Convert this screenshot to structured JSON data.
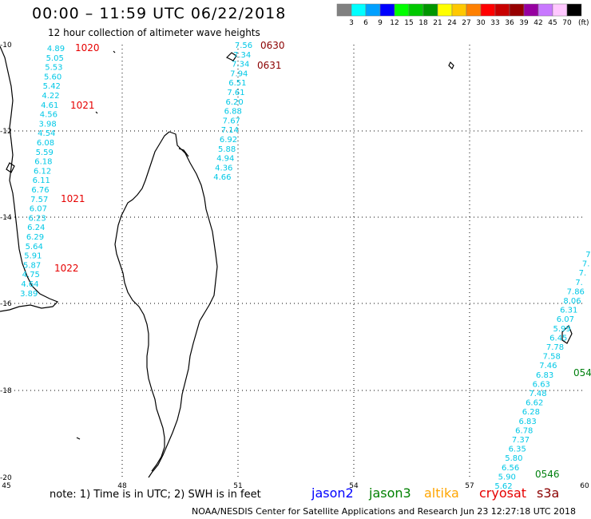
{
  "header": {
    "title": "00:00 – 11:59 UTC 06/22/2018",
    "subtitle": "12 hour collection of altimeter wave heights"
  },
  "colorbar": {
    "colors": [
      "#808080",
      "#00ffff",
      "#00a0ff",
      "#0000ff",
      "#00ff00",
      "#00c800",
      "#009600",
      "#ffff00",
      "#ffc800",
      "#ff8000",
      "#ff0000",
      "#c80000",
      "#960000",
      "#9600a0",
      "#c878ff",
      "#ffc8ff",
      "#000000"
    ],
    "labels": [
      "3",
      "6",
      "9",
      "12",
      "15",
      "18",
      "21",
      "24",
      "27",
      "30",
      "33",
      "36",
      "39",
      "42",
      "45",
      "70"
    ],
    "unit": "(ft)"
  },
  "axes": {
    "lon_labels": [
      "45",
      "48",
      "51",
      "54",
      "57",
      "60"
    ],
    "lat_labels": [
      "-10",
      "-12",
      "-14",
      "-16",
      "-18",
      "-20"
    ]
  },
  "tracks": [
    {
      "name": "west-cryosat",
      "color": "#00c8e6",
      "values": [
        "4.89",
        "5.05",
        "5.53",
        "5.60",
        "5.42",
        "4.22",
        "4.61",
        "4.56",
        "3.98",
        "4.54",
        "6.08",
        "5.59",
        "6.18",
        "6.12",
        "6.11",
        "6.76",
        "7.57",
        "6.07",
        "6.23",
        "6.24",
        "6.29",
        "5.64",
        "5.91",
        "5.87",
        "4.75",
        "4.64",
        "3.89"
      ]
    },
    {
      "name": "central-s3a",
      "color": "#00c8e6",
      "values": [
        "7.56",
        "7.34",
        "7.34",
        "7.94",
        "6.51",
        "7.61",
        "6.20",
        "6.88",
        "7.67",
        "7.14",
        "6.92",
        "5.88",
        "4.94",
        "4.36",
        "4.66"
      ]
    },
    {
      "name": "east-jason3",
      "color": "#00c8e6",
      "values": [
        "7.",
        "7.",
        "7.",
        "7.",
        "7.86",
        "8.06",
        "6.31",
        "6.07",
        "5.99",
        "6.45",
        "7.78",
        "7.58",
        "7.46",
        "6.83",
        "6.63",
        "7.48",
        "6.62",
        "6.28",
        "6.83",
        "6.78",
        "7.37",
        "6.35",
        "5.80",
        "6.56",
        "5.90",
        "5.62"
      ]
    }
  ],
  "time_labels": [
    {
      "text": "1020",
      "color": "#e60000"
    },
    {
      "text": "1021",
      "color": "#e60000"
    },
    {
      "text": "1021",
      "color": "#e60000"
    },
    {
      "text": "1022",
      "color": "#e60000"
    },
    {
      "text": "0630",
      "color": "#8b0000"
    },
    {
      "text": "0631",
      "color": "#8b0000"
    },
    {
      "text": "054",
      "color": "#00800f"
    },
    {
      "text": "0546",
      "color": "#00800f"
    }
  ],
  "footer": {
    "note": "note:  1) Time is in UTC;  2) SWH is in feet",
    "satellites": [
      {
        "name": "jason2",
        "color": "#0000ff"
      },
      {
        "name": "jason3",
        "color": "#008000"
      },
      {
        "name": "altika",
        "color": "#ffa500"
      },
      {
        "name": "cryosat",
        "color": "#e60000"
      },
      {
        "name": "s3a",
        "color": "#8b0000"
      }
    ],
    "credit": "NOAA/NESDIS Center for Satellite Applications and Research    Jun 23 12:27:18 UTC 2018"
  }
}
